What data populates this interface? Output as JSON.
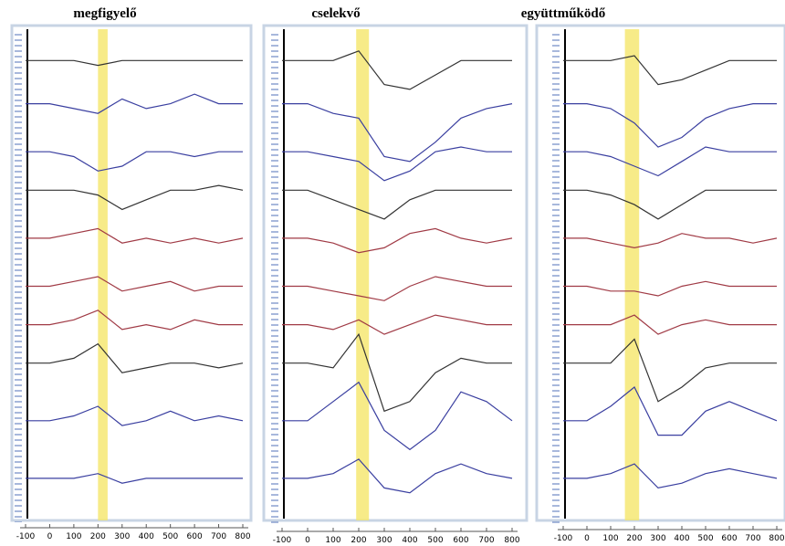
{
  "chart_data": [
    {
      "type": "line",
      "title": "megfigyelő",
      "x": [
        -100,
        0,
        100,
        200,
        300,
        400,
        500,
        600,
        700,
        800
      ],
      "xlim": [
        -100,
        800
      ],
      "xticks": [
        -100,
        0,
        100,
        200,
        300,
        400,
        500,
        600,
        700,
        800
      ],
      "ylim": [
        0,
        100
      ],
      "highlight": [
        200,
        240
      ],
      "highlight_color": "#f5e66a",
      "series": [
        {
          "color": "#333333",
          "values": [
            95,
            95,
            95,
            94,
            95,
            95,
            95,
            95,
            95,
            95
          ]
        },
        {
          "color": "#3a3fa0",
          "values": [
            86,
            86,
            85,
            84,
            87,
            85,
            86,
            88,
            86,
            86
          ]
        },
        {
          "color": "#3a3fa0",
          "values": [
            76,
            76,
            75,
            72,
            73,
            76,
            76,
            75,
            76,
            76
          ]
        },
        {
          "color": "#333333",
          "values": [
            68,
            68,
            68,
            67,
            64,
            66,
            68,
            68,
            69,
            68
          ]
        },
        {
          "color": "#a03a45",
          "values": [
            58,
            58,
            59,
            60,
            57,
            58,
            57,
            58,
            57,
            58
          ]
        },
        {
          "color": "#a03a45",
          "values": [
            48,
            48,
            49,
            50,
            47,
            48,
            49,
            47,
            48,
            48
          ]
        },
        {
          "color": "#a03a45",
          "values": [
            40,
            40,
            41,
            43,
            39,
            40,
            39,
            41,
            40,
            40
          ]
        },
        {
          "color": "#333333",
          "values": [
            32,
            32,
            33,
            36,
            30,
            31,
            32,
            32,
            31,
            32
          ]
        },
        {
          "color": "#3a3fa0",
          "values": [
            20,
            20,
            21,
            23,
            19,
            20,
            22,
            20,
            21,
            20
          ]
        },
        {
          "color": "#3a3fa0",
          "values": [
            8,
            8,
            8,
            9,
            7,
            8,
            8,
            8,
            8,
            8
          ]
        }
      ]
    },
    {
      "type": "line",
      "title": "cselekvő",
      "x": [
        -100,
        0,
        100,
        200,
        300,
        400,
        500,
        600,
        700,
        800
      ],
      "xlim": [
        -100,
        800
      ],
      "xticks": [
        -100,
        0,
        100,
        200,
        300,
        400,
        500,
        600,
        700,
        800
      ],
      "ylim": [
        0,
        100
      ],
      "highlight": [
        190,
        240
      ],
      "highlight_color": "#f5e66a",
      "series": [
        {
          "color": "#333333",
          "values": [
            95,
            95,
            95,
            97,
            90,
            89,
            92,
            95,
            95,
            95
          ]
        },
        {
          "color": "#3a3fa0",
          "values": [
            86,
            86,
            84,
            83,
            75,
            74,
            78,
            83,
            85,
            86
          ]
        },
        {
          "color": "#3a3fa0",
          "values": [
            76,
            76,
            75,
            74,
            70,
            72,
            76,
            77,
            76,
            76
          ]
        },
        {
          "color": "#333333",
          "values": [
            68,
            68,
            66,
            64,
            62,
            66,
            68,
            68,
            68,
            68
          ]
        },
        {
          "color": "#a03a45",
          "values": [
            58,
            58,
            57,
            55,
            56,
            59,
            60,
            58,
            57,
            58
          ]
        },
        {
          "color": "#a03a45",
          "values": [
            48,
            48,
            47,
            46,
            45,
            48,
            50,
            49,
            48,
            48
          ]
        },
        {
          "color": "#a03a45",
          "values": [
            40,
            40,
            39,
            41,
            38,
            40,
            42,
            41,
            40,
            40
          ]
        },
        {
          "color": "#333333",
          "values": [
            32,
            32,
            31,
            38,
            22,
            24,
            30,
            33,
            32,
            32
          ]
        },
        {
          "color": "#3a3fa0",
          "values": [
            20,
            20,
            24,
            28,
            18,
            14,
            18,
            26,
            24,
            20
          ]
        },
        {
          "color": "#3a3fa0",
          "values": [
            8,
            8,
            9,
            12,
            6,
            5,
            9,
            11,
            9,
            8
          ]
        }
      ]
    },
    {
      "type": "line",
      "title": "együttműködő",
      "x": [
        -100,
        0,
        100,
        200,
        300,
        400,
        500,
        600,
        700,
        800
      ],
      "xlim": [
        -100,
        800
      ],
      "xticks": [
        -100,
        0,
        100,
        200,
        300,
        400,
        500,
        600,
        700,
        800
      ],
      "ylim": [
        0,
        100
      ],
      "highlight": [
        160,
        220
      ],
      "highlight_color": "#f5e66a",
      "series": [
        {
          "color": "#333333",
          "values": [
            95,
            95,
            95,
            96,
            90,
            91,
            93,
            95,
            95,
            95
          ]
        },
        {
          "color": "#3a3fa0",
          "values": [
            86,
            86,
            85,
            82,
            77,
            79,
            83,
            85,
            86,
            86
          ]
        },
        {
          "color": "#3a3fa0",
          "values": [
            76,
            76,
            75,
            73,
            71,
            74,
            77,
            76,
            76,
            76
          ]
        },
        {
          "color": "#333333",
          "values": [
            68,
            68,
            67,
            65,
            62,
            65,
            68,
            68,
            68,
            68
          ]
        },
        {
          "color": "#a03a45",
          "values": [
            58,
            58,
            57,
            56,
            57,
            59,
            58,
            58,
            57,
            58
          ]
        },
        {
          "color": "#a03a45",
          "values": [
            48,
            48,
            47,
            47,
            46,
            48,
            49,
            48,
            48,
            48
          ]
        },
        {
          "color": "#a03a45",
          "values": [
            40,
            40,
            40,
            42,
            38,
            40,
            41,
            40,
            40,
            40
          ]
        },
        {
          "color": "#333333",
          "values": [
            32,
            32,
            32,
            37,
            24,
            27,
            31,
            32,
            32,
            32
          ]
        },
        {
          "color": "#3a3fa0",
          "values": [
            20,
            20,
            23,
            27,
            17,
            17,
            22,
            24,
            22,
            20
          ]
        },
        {
          "color": "#3a3fa0",
          "values": [
            8,
            8,
            9,
            11,
            6,
            7,
            9,
            10,
            9,
            8
          ]
        }
      ]
    }
  ]
}
